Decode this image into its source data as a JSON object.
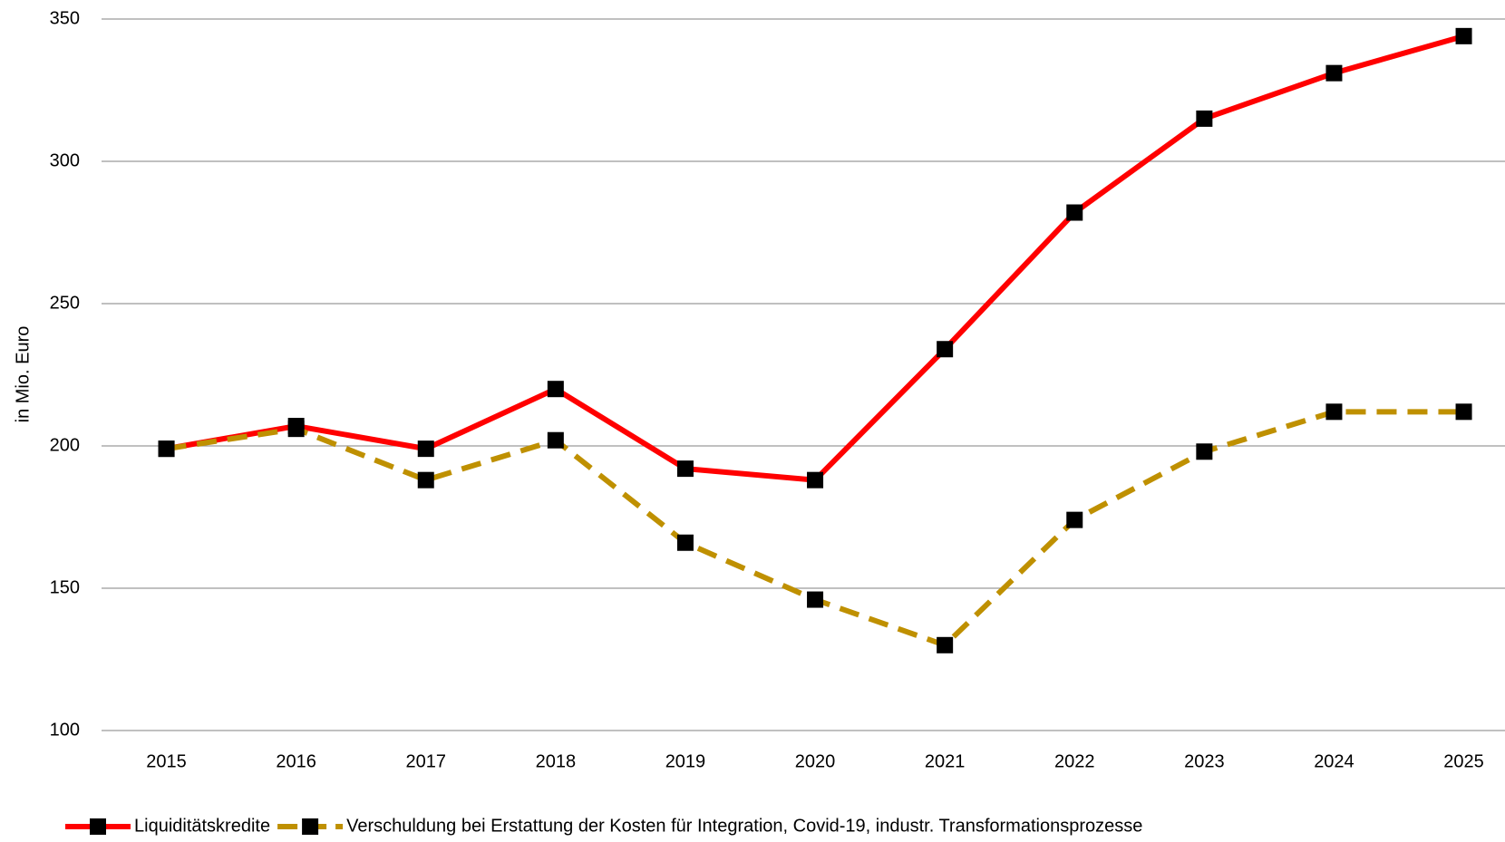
{
  "chart_data": {
    "type": "line",
    "y_label": "in Mio. Euro",
    "categories": [
      "2015",
      "2016",
      "2017",
      "2018",
      "2019",
      "2020",
      "2021",
      "2022",
      "2023",
      "2024",
      "2025"
    ],
    "series": [
      {
        "name": "Liquiditätskredite",
        "color": "#ff0000",
        "dashed": false,
        "values": [
          199,
          207,
          199,
          220,
          192,
          188,
          234,
          282,
          315,
          331,
          344
        ]
      },
      {
        "name": "Verschuldung bei Erstattung der Kosten für Integration, Covid-19, industr. Transformationsprozesse",
        "color": "#bf9000",
        "dashed": true,
        "values": [
          199,
          206,
          188,
          202,
          166,
          146,
          130,
          174,
          198,
          212,
          212
        ]
      }
    ],
    "ylim": [
      100,
      350
    ],
    "yticks": [
      100,
      150,
      200,
      250,
      300,
      350
    ],
    "grid": true,
    "legend": "bottom"
  }
}
